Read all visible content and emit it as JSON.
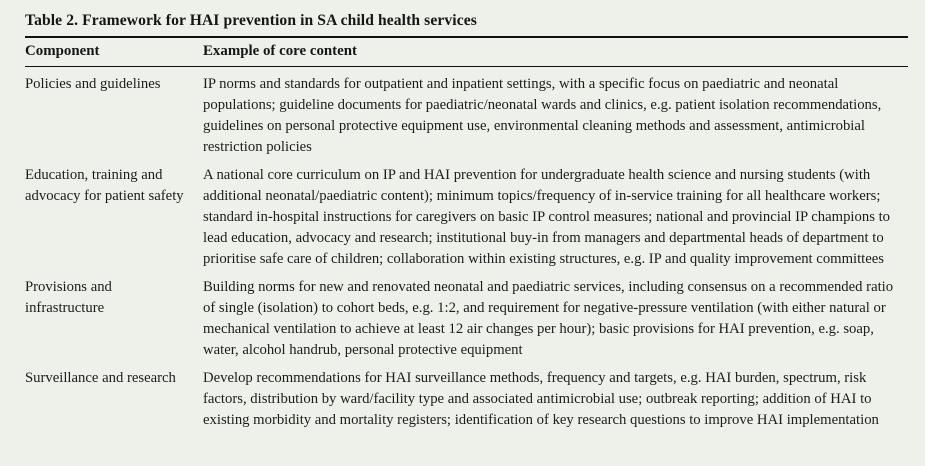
{
  "table": {
    "title": "Table 2. Framework for HAI prevention in SA child health services",
    "columns": [
      {
        "label": "Component"
      },
      {
        "label": "Example of core content"
      }
    ],
    "rows": [
      {
        "component": "Policies and guidelines",
        "content": "IP norms and standards for outpatient and inpatient settings, with a specific focus on paediatric and neonatal populations; guideline documents for paediatric/neonatal wards and clinics, e.g. patient isolation recommendations, guidelines on personal protective equipment use, environmental cleaning methods and assessment, antimicrobial restriction policies"
      },
      {
        "component": "Education, training and advocacy for patient safety",
        "content": "A national core curriculum on IP and HAI prevention for undergraduate health science and nursing students (with additional neonatal/paediatric content); minimum topics/frequency of in-service training for all healthcare workers; standard in-hospital instructions for caregivers on basic IP control measures; national and provincial IP champions to lead education, advocacy and research; institutional buy-in from managers and departmental heads of department to prioritise safe care of children; collaboration within existing structures, e.g. IP and quality improvement committees"
      },
      {
        "component": "Provisions and infrastructure",
        "content": "Building norms for new and renovated neonatal and paediatric services, including consensus on a recommended ratio of single (isolation) to cohort beds, e.g. 1:2, and requirement for negative-pressure ventilation (with either natural or mechanical ventilation to achieve at least 12 air changes per hour); basic provisions for HAI prevention, e.g. soap, water, alcohol handrub, personal protective equipment"
      },
      {
        "component": "Surveillance and research",
        "content": "Develop recommendations for HAI surveillance methods, frequency and targets, e.g. HAI burden, spectrum, risk factors, distribution by ward/facility type and associated antimicrobial use; outbreak reporting; addition of HAI to existing morbidity and mortality registers; identification of key research questions to improve HAI implementation"
      }
    ],
    "colors": {
      "background": "#eef1ea",
      "text": "#1c1c1c",
      "rule": "#121212"
    }
  }
}
